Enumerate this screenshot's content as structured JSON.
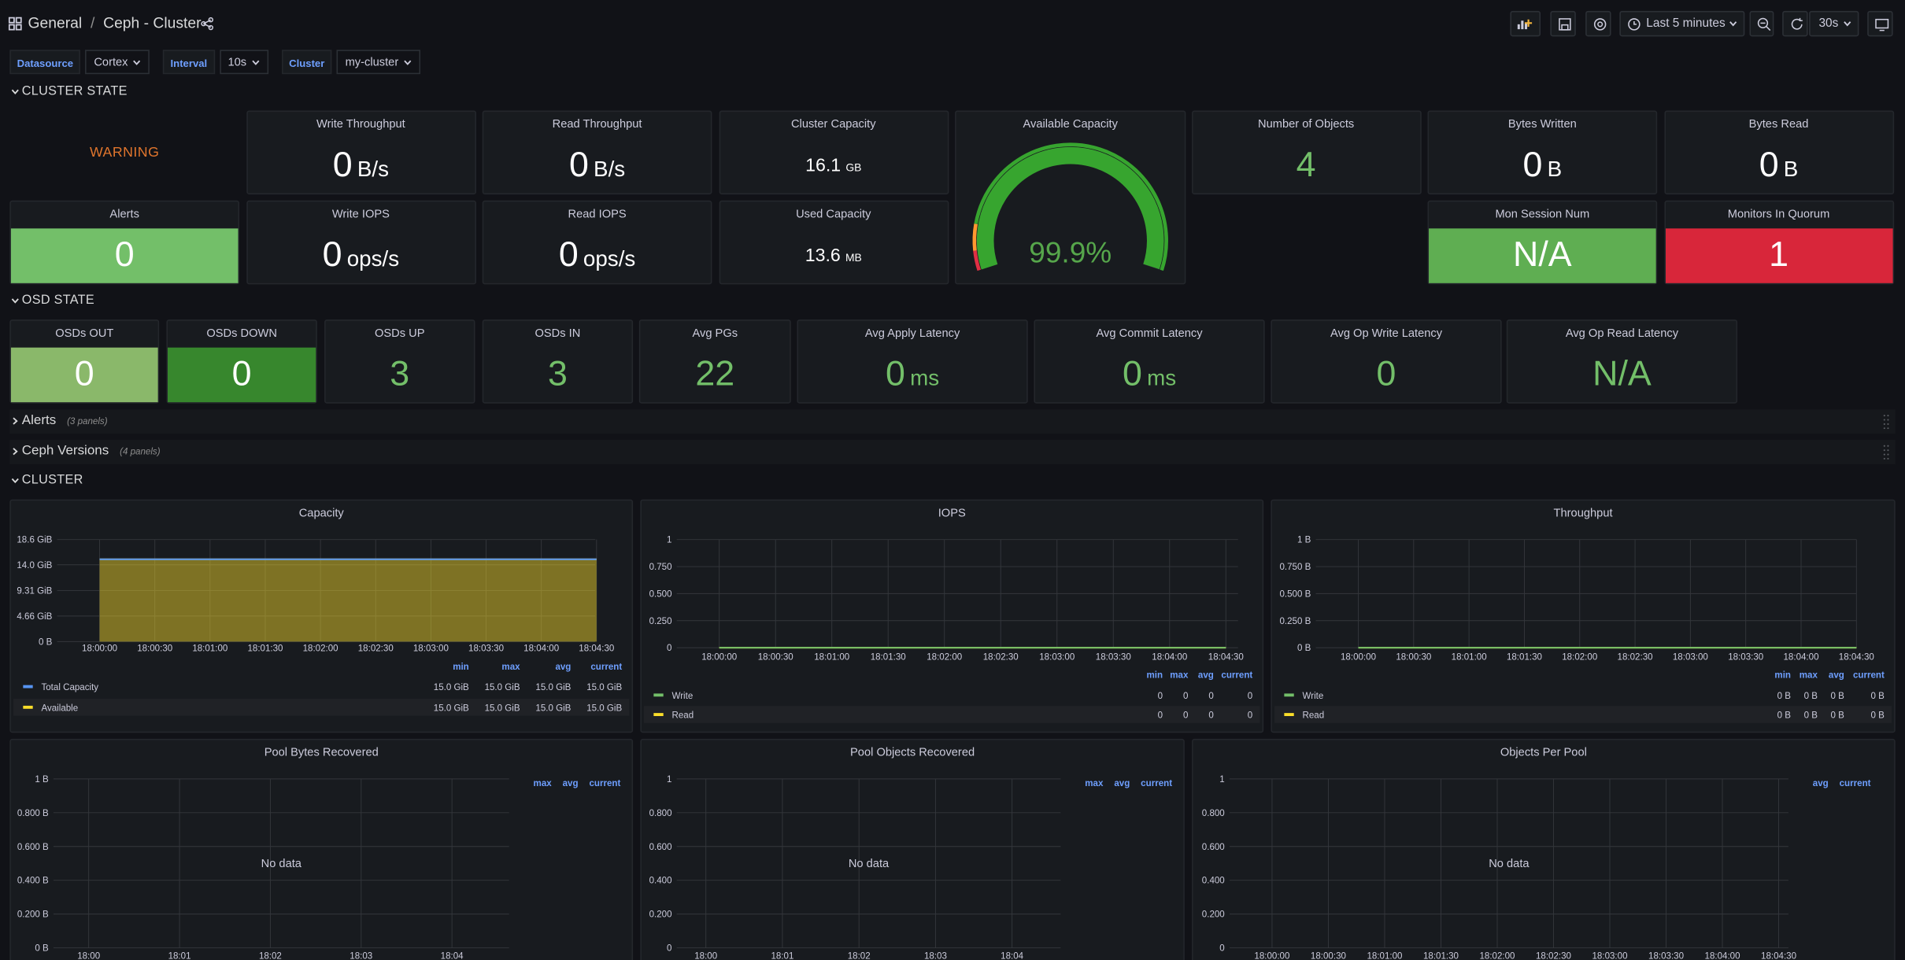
{
  "header": {
    "breadcrumb": [
      "General",
      "Ceph - Cluster"
    ],
    "separator": "/",
    "time_range": "Last 5 minutes",
    "refresh": "30s"
  },
  "variables": [
    {
      "label": "Datasource",
      "value": "Cortex"
    },
    {
      "label": "Interval",
      "value": "10s"
    },
    {
      "label": "Cluster",
      "value": "my-cluster"
    }
  ],
  "cluster_state": {
    "title": "CLUSTER STATE",
    "health": "WARNING",
    "stats": [
      {
        "title": "Write Throughput",
        "value": 0,
        "unit": "B/s"
      },
      {
        "title": "Read Throughput",
        "value": 0,
        "unit": "B/s"
      },
      {
        "title": "Cluster Capacity",
        "value": 16.1,
        "unit": "GB"
      },
      {
        "title": "Number of Objects",
        "value": 4,
        "color": "#73bf69"
      },
      {
        "title": "Bytes Written",
        "value": 0,
        "unit": "B"
      },
      {
        "title": "Bytes Read",
        "value": 0,
        "unit": "B"
      },
      {
        "title": "Alerts",
        "value": 0,
        "background": "#73bf69"
      },
      {
        "title": "Write IOPS",
        "value": 0,
        "unit": "ops/s"
      },
      {
        "title": "Read IOPS",
        "value": 0,
        "unit": "ops/s"
      },
      {
        "title": "Used Capacity",
        "value": 13.6,
        "unit": "MB"
      },
      {
        "title": "Mon Session Num",
        "value": "N/A",
        "background": "#5fae52"
      },
      {
        "title": "Monitors In Quorum",
        "value": 1,
        "background": "#d8263a"
      }
    ],
    "gauge": {
      "title": "Available Capacity",
      "value": 99.9,
      "value_label": "99.9%",
      "ylim": [
        0,
        100
      ],
      "color": "#37a52f"
    }
  },
  "osd_state": {
    "title": "OSD STATE",
    "stats": [
      {
        "title": "OSDs OUT",
        "value": 0,
        "background": "#8ab86a"
      },
      {
        "title": "OSDs DOWN",
        "value": 0,
        "background": "#37872d"
      },
      {
        "title": "OSDs UP",
        "value": 3,
        "color": "#73bf69"
      },
      {
        "title": "OSDs IN",
        "value": 3,
        "color": "#73bf69"
      },
      {
        "title": "Avg PGs",
        "value": 22,
        "color": "#73bf69"
      },
      {
        "title": "Avg Apply Latency",
        "value": 0,
        "unit": "ms",
        "color": "#73bf69"
      },
      {
        "title": "Avg Commit Latency",
        "value": 0,
        "unit": "ms",
        "color": "#73bf69"
      },
      {
        "title": "Avg Op Write Latency",
        "value": 0,
        "color": "#73bf69"
      },
      {
        "title": "Avg Op Read Latency",
        "value": "N/A",
        "color": "#73bf69"
      }
    ]
  },
  "collapsed_rows": [
    {
      "title": "Alerts",
      "note": "(3 panels)"
    },
    {
      "title": "Ceph Versions",
      "note": "(4 panels)"
    }
  ],
  "cluster": {
    "title": "CLUSTER",
    "graphs": [
      {
        "title": "Capacity",
        "ylim": [
          0,
          18.6
        ],
        "yticks": [
          {
            "value": 0,
            "label": "0 B"
          },
          {
            "value": 4.66,
            "label": "4.66 GiB"
          },
          {
            "value": 9.31,
            "label": "9.31 GiB"
          },
          {
            "value": 14.0,
            "label": "14.0 GiB"
          },
          {
            "value": 18.6,
            "label": "18.6 GiB"
          }
        ],
        "xticks": [
          "18:00:00",
          "18:00:30",
          "18:01:00",
          "18:01:30",
          "18:02:00",
          "18:02:30",
          "18:03:00",
          "18:03:30",
          "18:04:00",
          "18:04:30"
        ],
        "legend_columns": [
          "min",
          "max",
          "avg",
          "current"
        ],
        "series": [
          {
            "name": "Total Capacity",
            "color": "#5794f2",
            "values": [
              15,
              15,
              15,
              15,
              15,
              15,
              15,
              15,
              15,
              15
            ],
            "legend": [
              "15.0 GiB",
              "15.0 GiB",
              "15.0 GiB",
              "15.0 GiB"
            ]
          },
          {
            "name": "Available",
            "color": "#fade2a",
            "area": true,
            "values": [
              15,
              15,
              15,
              15,
              15,
              15,
              15,
              15,
              15,
              15
            ],
            "legend": [
              "15.0 GiB",
              "15.0 GiB",
              "15.0 GiB",
              "15.0 GiB"
            ]
          }
        ]
      },
      {
        "title": "IOPS",
        "ylim": [
          0,
          1
        ],
        "yticks": [
          0,
          {
            "value": 0.25,
            "label": "0.250"
          },
          {
            "value": 0.5,
            "label": "0.500"
          },
          {
            "value": 0.75,
            "label": "0.750"
          },
          1
        ],
        "xticks": [
          "18:00:00",
          "18:00:30",
          "18:01:00",
          "18:01:30",
          "18:02:00",
          "18:02:30",
          "18:03:00",
          "18:03:30",
          "18:04:00",
          "18:04:30"
        ],
        "legend_columns": [
          "min",
          "max",
          "avg",
          "current"
        ],
        "series": [
          {
            "name": "Write",
            "color": "#73bf69",
            "values": [
              0,
              0,
              0,
              0,
              0,
              0,
              0,
              0,
              0,
              0
            ],
            "legend": [
              0,
              0,
              0,
              0
            ]
          },
          {
            "name": "Read",
            "color": "#fade2a",
            "values": [
              0,
              0,
              0,
              0,
              0,
              0,
              0,
              0,
              0,
              0
            ],
            "legend": [
              0,
              0,
              0,
              0
            ]
          }
        ]
      },
      {
        "title": "Throughput",
        "ylim": [
          0,
          1
        ],
        "yticks": [
          {
            "value": 0,
            "label": "0 B"
          },
          {
            "value": 0.25,
            "label": "0.250 B"
          },
          {
            "value": 0.5,
            "label": "0.500 B"
          },
          {
            "value": 0.75,
            "label": "0.750 B"
          },
          {
            "value": 1,
            "label": "1 B"
          }
        ],
        "xticks": [
          "18:00:00",
          "18:00:30",
          "18:01:00",
          "18:01:30",
          "18:02:00",
          "18:02:30",
          "18:03:00",
          "18:03:30",
          "18:04:00",
          "18:04:30"
        ],
        "legend_columns": [
          "min",
          "max",
          "avg",
          "current"
        ],
        "series": [
          {
            "name": "Write",
            "color": "#73bf69",
            "values": [
              0,
              0,
              0,
              0,
              0,
              0,
              0,
              0,
              0,
              0
            ],
            "legend": [
              "0 B",
              "0 B",
              "0 B",
              "0 B"
            ]
          },
          {
            "name": "Read",
            "color": "#fade2a",
            "values": [
              0,
              0,
              0,
              0,
              0,
              0,
              0,
              0,
              0,
              0
            ],
            "legend": [
              "0 B",
              "0 B",
              "0 B",
              "0 B"
            ]
          }
        ]
      },
      {
        "title": "Pool Bytes Recovered",
        "ylim": [
          0,
          1
        ],
        "no_data": "No data",
        "yticks": [
          {
            "value": 0,
            "label": "0 B"
          },
          {
            "value": 0.2,
            "label": "0.200 B"
          },
          {
            "value": 0.4,
            "label": "0.400 B"
          },
          {
            "value": 0.6,
            "label": "0.600 B"
          },
          {
            "value": 0.8,
            "label": "0.800 B"
          },
          {
            "value": 1,
            "label": "1 B"
          }
        ],
        "xticks": [
          "18:00",
          "18:01",
          "18:02",
          "18:03",
          "18:04"
        ],
        "legend_columns": [
          "max",
          "avg",
          "current"
        ],
        "series": []
      },
      {
        "title": "Pool Objects Recovered",
        "ylim": [
          0,
          1
        ],
        "no_data": "No data",
        "yticks": [
          0,
          {
            "value": 0.2,
            "label": "0.200"
          },
          {
            "value": 0.4,
            "label": "0.400"
          },
          {
            "value": 0.6,
            "label": "0.600"
          },
          {
            "value": 0.8,
            "label": "0.800"
          },
          1
        ],
        "xticks": [
          "18:00",
          "18:01",
          "18:02",
          "18:03",
          "18:04"
        ],
        "legend_columns": [
          "max",
          "avg",
          "current"
        ],
        "series": []
      },
      {
        "title": "Objects Per Pool",
        "ylim": [
          0,
          1
        ],
        "no_data": "No data",
        "yticks": [
          0,
          {
            "value": 0.2,
            "label": "0.200"
          },
          {
            "value": 0.4,
            "label": "0.400"
          },
          {
            "value": 0.6,
            "label": "0.600"
          },
          {
            "value": 0.8,
            "label": "0.800"
          },
          1
        ],
        "xticks": [
          "18:00:00",
          "18:00:30",
          "18:01:00",
          "18:01:30",
          "18:02:00",
          "18:02:30",
          "18:03:00",
          "18:03:30",
          "18:04:00",
          "18:04:30"
        ],
        "legend_columns": [
          "avg",
          "current"
        ],
        "series": []
      }
    ]
  }
}
